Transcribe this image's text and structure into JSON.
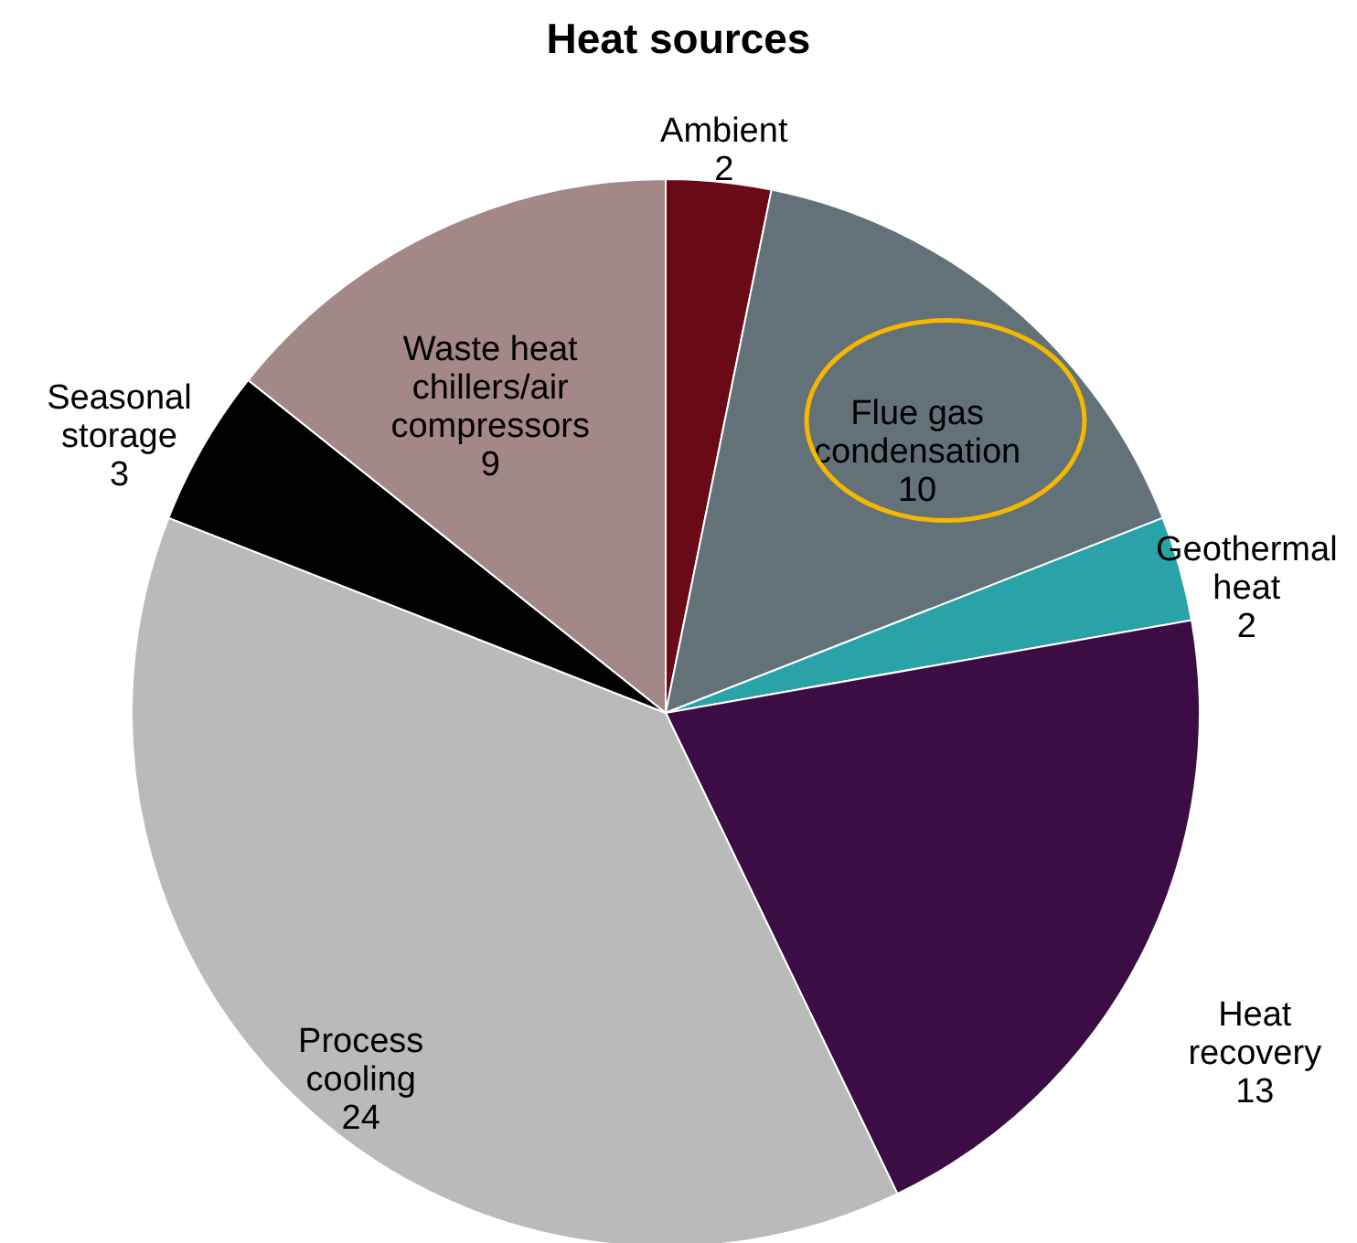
{
  "chart_data": {
    "type": "pie",
    "title": "Heat sources",
    "categories": [
      "Ambient",
      "Flue gas\ncondensation",
      "Geothermal\nheat",
      "Heat\nrecovery",
      "Process\ncooling",
      "Seasonal\nstorage",
      "Waste heat\nchillers/air\ncompressors"
    ],
    "values": [
      2,
      10,
      2,
      13,
      24,
      3,
      9
    ],
    "colors": [
      "#6b0a17",
      "#637179",
      "#2aa3a8",
      "#3c0c45",
      "#bababa",
      "#000000",
      "#a48787"
    ],
    "data_labels": true,
    "legend": false
  }
}
